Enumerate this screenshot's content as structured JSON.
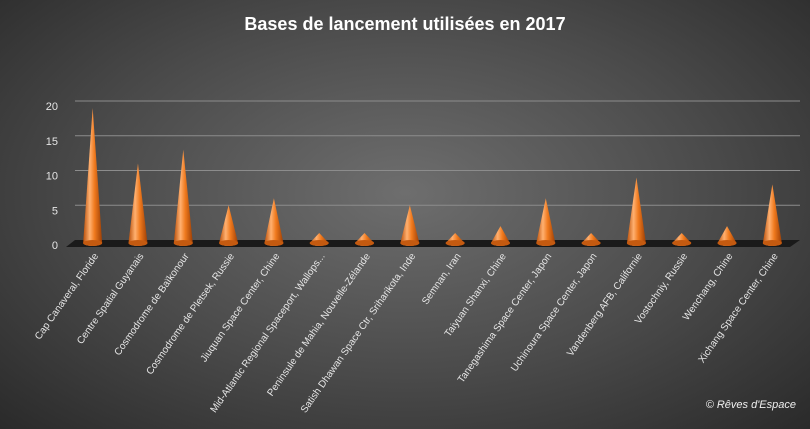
{
  "chart_data": {
    "type": "bar",
    "title": "Bases de lancement  utilisées  en 2017",
    "categories": [
      "Cap Canaveral, Floride",
      "Centre Spatial Guyanais",
      "Cosmodrome de Baïkonour",
      "Cosmodrome de Pletsek, Russie",
      "Jiuquan Space Center, Chine",
      "Mid-Atlantic Regional Spaceport, Wallops...",
      "Peninsule de Mahia, Nouvelle-Zélande",
      "Satish Dhawan Space Ctr, Sriharikota, Inde",
      "Semnan, Iran",
      "Taiyuan Shanxi, Chine",
      "Tanegashima Space Center, Japon",
      "Uchinoura Space Center, Japon",
      "Vandenberg AFB, Californie",
      "Vostochniy, Russie",
      "Wenchang, Chine",
      "Xichang Space Center, Chine"
    ],
    "values": [
      19,
      11,
      13,
      5,
      6,
      1,
      1,
      5,
      1,
      2,
      6,
      1,
      9,
      1,
      2,
      8
    ],
    "ylim": [
      0,
      20
    ],
    "yticks": [
      0,
      5,
      10,
      15,
      20
    ],
    "grid": true,
    "colors": {
      "cone": "#f07a1e",
      "floor": "#1a1a1a",
      "grid": "#8c8c8c"
    }
  },
  "credit": "© Rêves d'Espace"
}
